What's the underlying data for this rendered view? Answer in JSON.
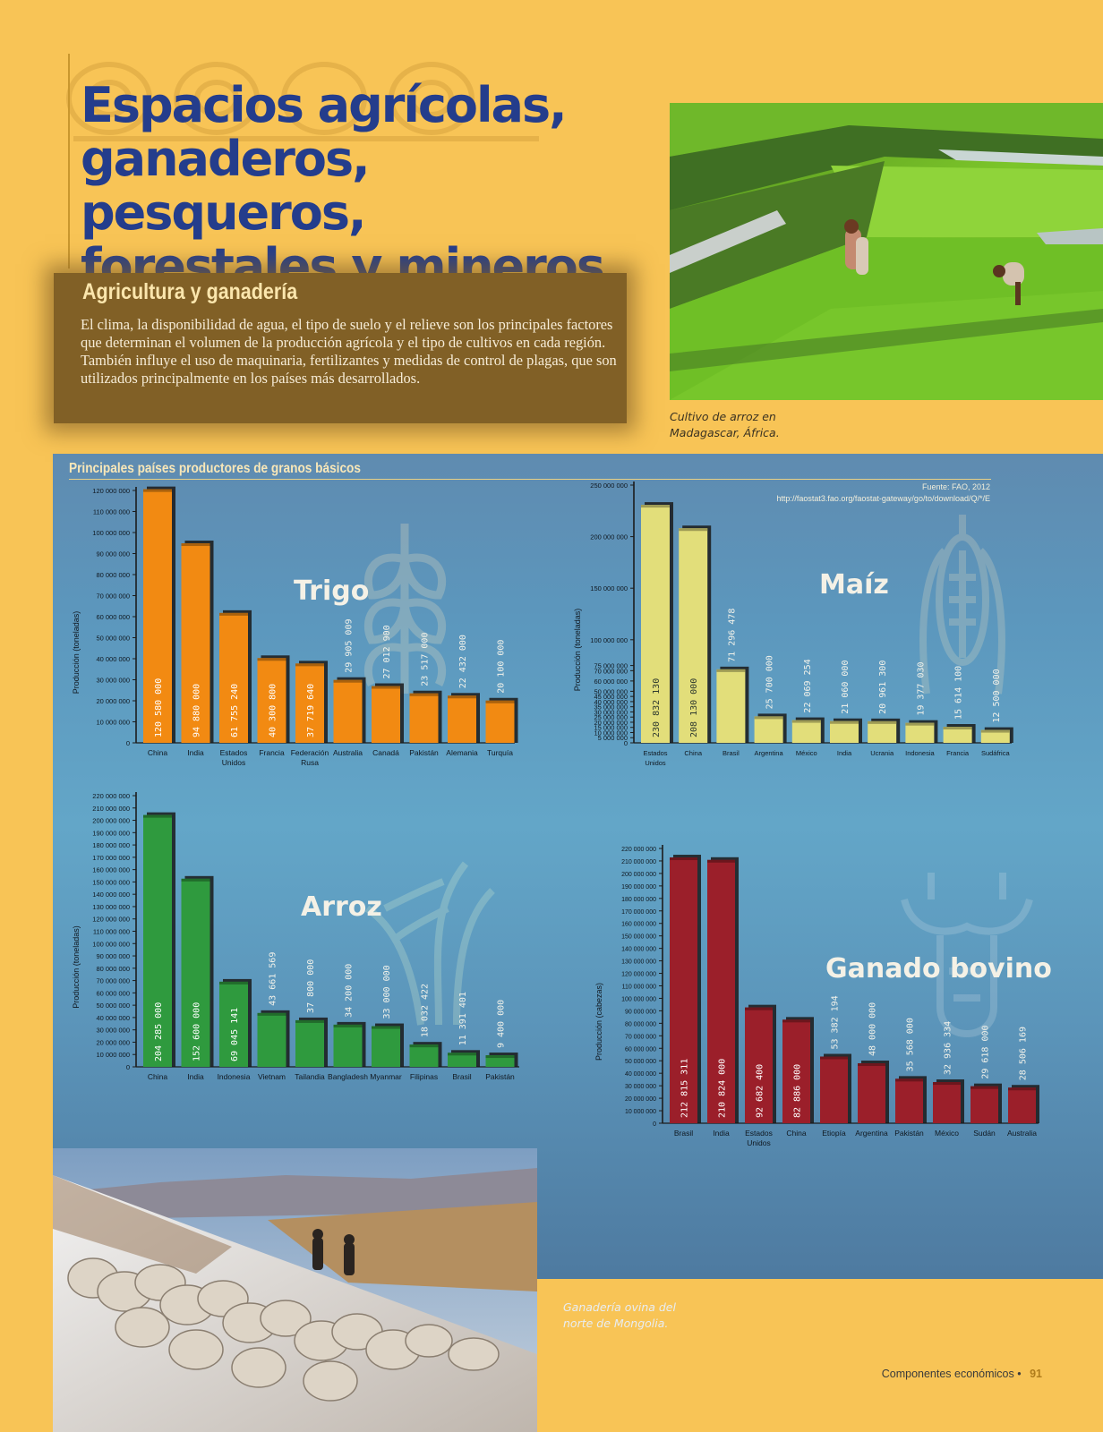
{
  "page": {
    "title_lines": [
      "Espacios agrícolas,",
      "ganaderos, pesqueros,",
      "forestales y mineros"
    ],
    "section_heading": "Agricultura y ganadería",
    "intro_text": "El clima, la disponibilidad de agua, el tipo de suelo y el relieve son los principales factores que determinan el volumen de la producción agrícola y el tipo de cultivos en cada región. También influye el uso de maquinaria, fertilizantes y medidas de control de plagas, que son utilizados principalmente en los países más desarrollados.",
    "rice_caption_lines": [
      "Cultivo de arroz en",
      "Madagascar, África."
    ],
    "sheep_caption_lines": [
      "Ganadería ovina del",
      "norte de Mongolia."
    ],
    "panel_title": "Principales países productores de granos básicos",
    "source_lines": [
      "Fuente: FAO, 2012",
      "http://faostat3.fao.org/faostat-gateway/go/to/download/Q/*/E"
    ],
    "footer_text": "Componentes económicos",
    "footer_bullet": "•",
    "page_number": "91"
  },
  "colors": {
    "trigo": "#f28a12",
    "maiz": "#e2de7a",
    "arroz": "#2f9a3e",
    "bovino": "#9b1f2a"
  },
  "chart_data": [
    {
      "type": "bar",
      "title": "Trigo",
      "ylabel": "Producción (toneladas)",
      "categories": [
        [
          "China"
        ],
        [
          "India"
        ],
        [
          "Estados",
          "Unidos"
        ],
        [
          "Francia"
        ],
        [
          "Federación",
          "Rusa"
        ],
        [
          "Australia"
        ],
        [
          "Canadá"
        ],
        [
          "Pakistán"
        ],
        [
          "Alemania"
        ],
        [
          "Turquía"
        ]
      ],
      "values": [
        120580000,
        94880000,
        61755240,
        40300800,
        37719640,
        29905009,
        27012900,
        23517000,
        22432000,
        20100000
      ],
      "value_labels": [
        "120 580 000",
        "94 880 000",
        "61 755 240",
        "40 300 800",
        "37 719 640",
        "29 905 009",
        "27 012 900",
        "23 517 000",
        "22 432 000",
        "20 100 000"
      ],
      "ylim": [
        0,
        120000000
      ],
      "yticks": [
        0,
        10000000,
        20000000,
        30000000,
        40000000,
        50000000,
        60000000,
        70000000,
        80000000,
        90000000,
        100000000,
        110000000,
        120000000
      ],
      "ytick_labels": [
        "0",
        "10 000 000",
        "20 000 000",
        "30 000 000",
        "40 000 000",
        "50 000 000",
        "60 000 000",
        "70 000 000",
        "80 000 000",
        "90 000 000",
        "100 000 000",
        "110 000 000",
        "120 000 000"
      ]
    },
    {
      "type": "bar",
      "title": "Maíz",
      "ylabel": "Producción (toneladas)",
      "categories": [
        [
          "Estados",
          "Unidos"
        ],
        [
          "China"
        ],
        [
          "Brasil"
        ],
        [
          "Argentina"
        ],
        [
          "México"
        ],
        [
          "India"
        ],
        [
          "Ucrania"
        ],
        [
          "Indonesia"
        ],
        [
          "Francia"
        ],
        [
          "Sudáfrica"
        ]
      ],
      "values": [
        230832130,
        208130000,
        71296478,
        25700000,
        22069254,
        21060000,
        20961300,
        19377030,
        15614100,
        12500000
      ],
      "value_labels": [
        "230 832 130",
        "208 130 000",
        "71 296 478",
        "25 700 000",
        "22 069 254",
        "21 060 000",
        "20 961 300",
        "19 377 030",
        "15 614 100",
        "12 500 000"
      ],
      "ylim": [
        0,
        250000000
      ],
      "yticks": [
        0,
        5000000,
        10000000,
        15000000,
        20000000,
        25000000,
        30000000,
        35000000,
        40000000,
        45000000,
        50000000,
        60000000,
        70000000,
        75000000,
        100000000,
        150000000,
        200000000,
        250000000
      ],
      "ytick_labels": [
        "0",
        "5 000 000",
        "10 000 000",
        "15 000 000",
        "20 000 000",
        "25 000 000",
        "30 000 000",
        "35 000 000",
        "40 000 000",
        "45 000 000",
        "50 000 000",
        "60 000 000",
        "70 000 000",
        "75 000 000",
        "100 000 000",
        "150 000 000",
        "200 000 000",
        "250 000 000"
      ]
    },
    {
      "type": "bar",
      "title": "Arroz",
      "ylabel": "Producción (toneladas)",
      "categories": [
        [
          "China"
        ],
        [
          "India"
        ],
        [
          "Indonesia"
        ],
        [
          "Vietnam"
        ],
        [
          "Tailandia"
        ],
        [
          "Bangladesh"
        ],
        [
          "Myanmar"
        ],
        [
          "Filipinas"
        ],
        [
          "Brasil"
        ],
        [
          "Pakistán"
        ]
      ],
      "values": [
        204285000,
        152600000,
        69045141,
        43661569,
        37800000,
        34200000,
        33000000,
        18032422,
        11391401,
        9400000
      ],
      "value_labels": [
        "204 285 000",
        "152 600 000",
        "69 045 141",
        "43 661 569",
        "37 800 000",
        "34 200 000",
        "33 000 000",
        "18 032 422",
        "11 391 401",
        "9 400 000"
      ],
      "ylim": [
        0,
        220000000
      ],
      "yticks": [
        0,
        10000000,
        20000000,
        30000000,
        40000000,
        50000000,
        60000000,
        70000000,
        80000000,
        90000000,
        100000000,
        110000000,
        120000000,
        130000000,
        140000000,
        150000000,
        160000000,
        170000000,
        180000000,
        190000000,
        200000000,
        210000000,
        220000000
      ],
      "ytick_labels": [
        "0",
        "10 000 000",
        "20 000 000",
        "30 000 000",
        "40 000 000",
        "50 000 000",
        "60 000 000",
        "70 000 000",
        "80 000 000",
        "90 000 000",
        "100 000 000",
        "110 000 000",
        "120 000 000",
        "130 000 000",
        "140 000 000",
        "150 000 000",
        "160 000 000",
        "170 000 000",
        "180 000 000",
        "190 000 000",
        "200 000 000",
        "210 000 000",
        "220 000 000"
      ]
    },
    {
      "type": "bar",
      "title": "Ganado bovino",
      "ylabel": "Producción (cabezas)",
      "categories": [
        [
          "Brasil"
        ],
        [
          "India"
        ],
        [
          "Estados",
          "Unidos"
        ],
        [
          "China"
        ],
        [
          "Etiopía"
        ],
        [
          "Argentina"
        ],
        [
          "Pakistán"
        ],
        [
          "México"
        ],
        [
          "Sudán"
        ],
        [
          "Australia"
        ]
      ],
      "values": [
        212815311,
        210824000,
        92682400,
        82886000,
        53382194,
        48000000,
        35568000,
        32936334,
        29618000,
        28506169
      ],
      "value_labels": [
        "212 815 311",
        "210 824 000",
        "92 682 400",
        "82 886 000",
        "53 382 194",
        "48 000 000",
        "35 568 000",
        "32 936 334",
        "29 618 000",
        "28 506 169"
      ],
      "ylim": [
        0,
        220000000
      ],
      "yticks": [
        0,
        10000000,
        20000000,
        30000000,
        40000000,
        50000000,
        60000000,
        70000000,
        80000000,
        90000000,
        100000000,
        110000000,
        120000000,
        130000000,
        140000000,
        150000000,
        160000000,
        170000000,
        180000000,
        190000000,
        200000000,
        210000000,
        220000000
      ],
      "ytick_labels": [
        "0",
        "10 000 000",
        "20 000 000",
        "30 000 000",
        "40 000 000",
        "50 000 000",
        "60 000 000",
        "70 000 000",
        "80 000 000",
        "90 000 000",
        "100 000 000",
        "110 000 000",
        "120 000 000",
        "130 000 000",
        "140 000 000",
        "150 000 000",
        "160 000 000",
        "170 000 000",
        "180 000 000",
        "190 000 000",
        "200 000 000",
        "210 000 000",
        "220 000 000"
      ]
    }
  ]
}
